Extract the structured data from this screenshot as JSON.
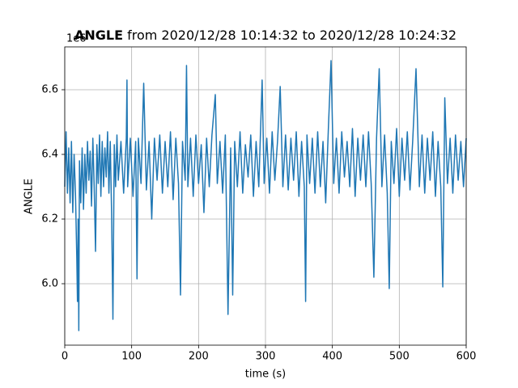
{
  "chart_data": {
    "type": "line",
    "title_variable": "ANGLE",
    "title_range": "from 2020/12/28 10:14:32 to 2020/12/28 10:24:32",
    "xlabel": "time (s)",
    "ylabel": "ANGLE",
    "y_offset_label": "1e6",
    "xlim": [
      0,
      600
    ],
    "xticks": [
      0,
      100,
      200,
      300,
      400,
      500,
      600
    ],
    "ylim": [
      5.81,
      6.7325
    ],
    "yticks": [
      {
        "value": 6.0,
        "label": "6.0"
      },
      {
        "value": 6.2,
        "label": "6.2"
      },
      {
        "value": 6.4,
        "label": "6.4"
      },
      {
        "value": 6.6,
        "label": "6.6"
      }
    ],
    "grid": true,
    "series": [
      {
        "color": "#1f77b4",
        "x": [
          0,
          2,
          4,
          6,
          8,
          10,
          12,
          14,
          16,
          18,
          19,
          20,
          21,
          22,
          24,
          26,
          28,
          30,
          32,
          34,
          36,
          38,
          40,
          42,
          44,
          46,
          48,
          50,
          52,
          54,
          56,
          58,
          60,
          62,
          64,
          66,
          68,
          70,
          72,
          74,
          76,
          78,
          80,
          84,
          88,
          92,
          93,
          94,
          98,
          102,
          106,
          108,
          110,
          114,
          118,
          122,
          126,
          130,
          134,
          138,
          142,
          146,
          150,
          154,
          158,
          162,
          166,
          170,
          173,
          176,
          180,
          182,
          184,
          188,
          192,
          196,
          200,
          204,
          208,
          212,
          216,
          220,
          225,
          228,
          232,
          236,
          240,
          244,
          248,
          251,
          254,
          258,
          262,
          266,
          270,
          274,
          278,
          282,
          286,
          290,
          295,
          298,
          302,
          306,
          310,
          314,
          318,
          322,
          326,
          330,
          334,
          338,
          342,
          346,
          350,
          354,
          358,
          360,
          362,
          366,
          370,
          374,
          378,
          382,
          386,
          390,
          394,
          398,
          402,
          406,
          410,
          414,
          418,
          422,
          426,
          430,
          434,
          438,
          442,
          446,
          450,
          454,
          458,
          462,
          466,
          470,
          474,
          478,
          482,
          485,
          488,
          492,
          496,
          500,
          504,
          508,
          512,
          516,
          520,
          525,
          530,
          534,
          538,
          542,
          546,
          550,
          554,
          558,
          562,
          565,
          568,
          572,
          576,
          580,
          584,
          588,
          592,
          596,
          600
        ],
        "values": [
          6.3,
          6.47,
          6.28,
          6.42,
          6.25,
          6.44,
          6.22,
          6.4,
          6.28,
          6.08,
          5.945,
          6.2,
          5.855,
          6.38,
          6.25,
          6.42,
          6.23,
          6.4,
          6.28,
          6.44,
          6.32,
          6.41,
          6.24,
          6.45,
          6.3,
          6.1,
          6.43,
          6.31,
          6.46,
          6.27,
          6.44,
          6.3,
          6.42,
          6.33,
          6.47,
          6.28,
          6.44,
          6.22,
          5.89,
          6.43,
          6.3,
          6.46,
          6.32,
          6.44,
          6.28,
          6.45,
          6.63,
          6.3,
          6.45,
          6.27,
          6.44,
          6.015,
          6.45,
          6.31,
          6.62,
          6.29,
          6.44,
          6.2,
          6.45,
          6.32,
          6.46,
          6.28,
          6.44,
          6.3,
          6.47,
          6.26,
          6.45,
          6.31,
          5.965,
          6.44,
          6.32,
          6.675,
          6.3,
          6.45,
          6.27,
          6.46,
          6.31,
          6.43,
          6.22,
          6.45,
          6.3,
          6.46,
          6.585,
          6.31,
          6.44,
          6.28,
          6.46,
          5.905,
          6.42,
          5.965,
          6.44,
          6.3,
          6.47,
          6.28,
          6.43,
          6.33,
          6.46,
          6.27,
          6.44,
          6.3,
          6.63,
          6.31,
          6.45,
          6.28,
          6.47,
          6.32,
          6.44,
          6.61,
          6.3,
          6.46,
          6.29,
          6.45,
          6.32,
          6.47,
          6.27,
          6.44,
          6.3,
          5.945,
          6.46,
          6.31,
          6.45,
          6.28,
          6.47,
          6.3,
          6.44,
          6.25,
          6.48,
          6.69,
          6.31,
          6.45,
          6.28,
          6.47,
          6.33,
          6.44,
          6.3,
          6.48,
          6.27,
          6.45,
          6.32,
          6.46,
          6.3,
          6.47,
          6.31,
          6.02,
          6.45,
          6.665,
          6.3,
          6.46,
          6.28,
          5.985,
          6.44,
          6.31,
          6.48,
          6.27,
          6.45,
          6.32,
          6.47,
          6.29,
          6.44,
          6.665,
          6.3,
          6.46,
          6.28,
          6.45,
          6.32,
          6.47,
          6.27,
          6.44,
          6.3,
          5.99,
          6.575,
          6.31,
          6.45,
          6.28,
          6.46,
          6.32,
          6.44,
          6.3,
          6.45
        ]
      }
    ]
  }
}
